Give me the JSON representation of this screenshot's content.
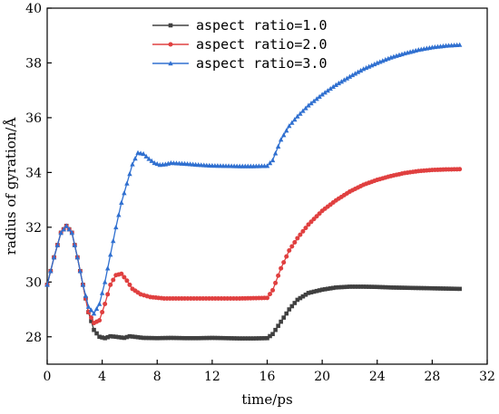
{
  "chart_data": {
    "type": "line",
    "xlabel": "time/ps",
    "ylabel": "radius of gyration/Å",
    "xlim": [
      0,
      32
    ],
    "ylim": [
      27,
      40
    ],
    "xticks": [
      0,
      4,
      8,
      12,
      16,
      20,
      24,
      28,
      32
    ],
    "yticks": [
      28,
      30,
      32,
      34,
      36,
      38,
      40
    ],
    "legend_position": "top-center",
    "grid": false,
    "series": [
      {
        "name": "aspect ratio=1.0",
        "color": "#404040",
        "marker": "square",
        "points": [
          [
            0,
            29.9
          ],
          [
            0.5,
            30.9
          ],
          [
            1,
            31.8
          ],
          [
            1.4,
            32.05
          ],
          [
            1.8,
            31.8
          ],
          [
            2.2,
            30.9
          ],
          [
            2.6,
            29.9
          ],
          [
            3,
            28.9
          ],
          [
            3.4,
            28.25
          ],
          [
            3.8,
            28.0
          ],
          [
            4.2,
            27.95
          ],
          [
            4.6,
            28.02
          ],
          [
            5.0,
            28.0
          ],
          [
            5.6,
            27.96
          ],
          [
            6.0,
            28.02
          ],
          [
            7,
            27.96
          ],
          [
            8,
            27.95
          ],
          [
            9,
            27.96
          ],
          [
            10,
            27.95
          ],
          [
            11,
            27.95
          ],
          [
            12,
            27.96
          ],
          [
            13,
            27.95
          ],
          [
            14,
            27.94
          ],
          [
            15,
            27.94
          ],
          [
            16,
            27.95
          ],
          [
            16.4,
            28.1
          ],
          [
            17,
            28.55
          ],
          [
            17.6,
            29.0
          ],
          [
            18.2,
            29.35
          ],
          [
            19,
            29.6
          ],
          [
            20,
            29.72
          ],
          [
            21,
            29.8
          ],
          [
            22,
            29.83
          ],
          [
            23,
            29.83
          ],
          [
            24,
            29.82
          ],
          [
            25,
            29.8
          ],
          [
            26,
            29.79
          ],
          [
            27,
            29.78
          ],
          [
            28,
            29.77
          ],
          [
            29,
            29.76
          ],
          [
            30,
            29.75
          ]
        ]
      },
      {
        "name": "aspect ratio=2.0",
        "color": "#e04040",
        "marker": "circle",
        "points": [
          [
            0,
            29.9
          ],
          [
            0.5,
            30.9
          ],
          [
            1,
            31.8
          ],
          [
            1.4,
            32.05
          ],
          [
            1.8,
            31.8
          ],
          [
            2.2,
            30.9
          ],
          [
            2.6,
            29.9
          ],
          [
            3,
            28.9
          ],
          [
            3.4,
            28.5
          ],
          [
            3.8,
            28.6
          ],
          [
            4.2,
            29.2
          ],
          [
            4.6,
            29.9
          ],
          [
            5.0,
            30.25
          ],
          [
            5.4,
            30.3
          ],
          [
            5.8,
            30.05
          ],
          [
            6.2,
            29.75
          ],
          [
            6.8,
            29.55
          ],
          [
            7.5,
            29.45
          ],
          [
            8.5,
            29.4
          ],
          [
            10,
            29.4
          ],
          [
            12,
            29.4
          ],
          [
            14,
            29.4
          ],
          [
            15,
            29.41
          ],
          [
            16,
            29.42
          ],
          [
            16.4,
            29.7
          ],
          [
            17,
            30.5
          ],
          [
            17.6,
            31.15
          ],
          [
            18.2,
            31.6
          ],
          [
            19,
            32.1
          ],
          [
            20,
            32.6
          ],
          [
            21,
            32.98
          ],
          [
            22,
            33.3
          ],
          [
            23,
            33.55
          ],
          [
            24,
            33.73
          ],
          [
            25,
            33.87
          ],
          [
            26,
            33.98
          ],
          [
            27,
            34.05
          ],
          [
            28,
            34.09
          ],
          [
            29,
            34.11
          ],
          [
            30,
            34.12
          ]
        ]
      },
      {
        "name": "aspect ratio=3.0",
        "color": "#3070d0",
        "marker": "triangle",
        "points": [
          [
            0,
            29.9
          ],
          [
            0.5,
            30.9
          ],
          [
            1,
            31.8
          ],
          [
            1.4,
            32.05
          ],
          [
            1.8,
            31.8
          ],
          [
            2.2,
            30.9
          ],
          [
            2.6,
            29.9
          ],
          [
            3,
            29.1
          ],
          [
            3.4,
            28.85
          ],
          [
            3.8,
            29.2
          ],
          [
            4.2,
            30.0
          ],
          [
            4.6,
            31.0
          ],
          [
            5.0,
            32.0
          ],
          [
            5.4,
            32.9
          ],
          [
            5.8,
            33.6
          ],
          [
            6.2,
            34.3
          ],
          [
            6.6,
            34.72
          ],
          [
            7.0,
            34.68
          ],
          [
            7.4,
            34.5
          ],
          [
            7.8,
            34.35
          ],
          [
            8.2,
            34.28
          ],
          [
            8.6,
            34.3
          ],
          [
            9,
            34.35
          ],
          [
            10,
            34.32
          ],
          [
            11,
            34.28
          ],
          [
            12,
            34.25
          ],
          [
            13,
            34.24
          ],
          [
            14,
            34.23
          ],
          [
            15,
            34.23
          ],
          [
            16,
            34.24
          ],
          [
            16.4,
            34.45
          ],
          [
            17,
            35.2
          ],
          [
            17.6,
            35.7
          ],
          [
            18.2,
            36.05
          ],
          [
            19,
            36.45
          ],
          [
            20,
            36.85
          ],
          [
            21,
            37.2
          ],
          [
            22,
            37.5
          ],
          [
            23,
            37.78
          ],
          [
            24,
            38.0
          ],
          [
            25,
            38.2
          ],
          [
            26,
            38.35
          ],
          [
            27,
            38.48
          ],
          [
            28,
            38.57
          ],
          [
            29,
            38.63
          ],
          [
            30,
            38.66
          ]
        ]
      }
    ]
  }
}
